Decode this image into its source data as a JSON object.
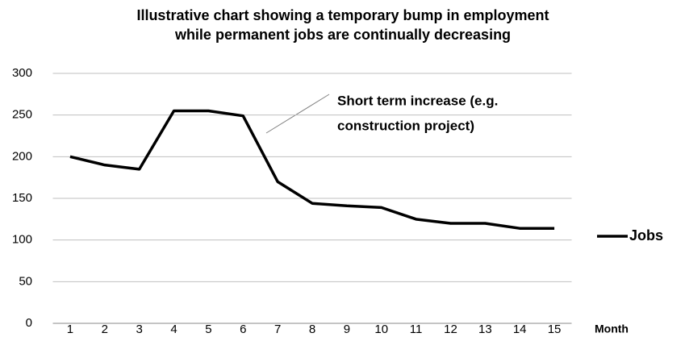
{
  "chart_data": {
    "type": "line",
    "title": [
      "Illustrative chart showing a temporary bump in employment",
      "while permanent jobs are continually decreasing"
    ],
    "x_label": "Month",
    "categories": [
      "1",
      "2",
      "3",
      "4",
      "5",
      "6",
      "7",
      "8",
      "9",
      "10",
      "11",
      "12",
      "13",
      "14",
      "15"
    ],
    "series": [
      {
        "name": "Jobs",
        "color": "#000000",
        "values": [
          200,
          190,
          185,
          255,
          255,
          249,
          170,
          144,
          141,
          139,
          125,
          120,
          120,
          114,
          114
        ]
      }
    ],
    "ylim": [
      0,
      300
    ],
    "yticks": [
      0,
      50,
      100,
      150,
      200,
      250,
      300
    ],
    "grid": true,
    "legend": "right",
    "annotation": [
      "Short term increase (e.g.",
      "construction project)"
    ]
  }
}
